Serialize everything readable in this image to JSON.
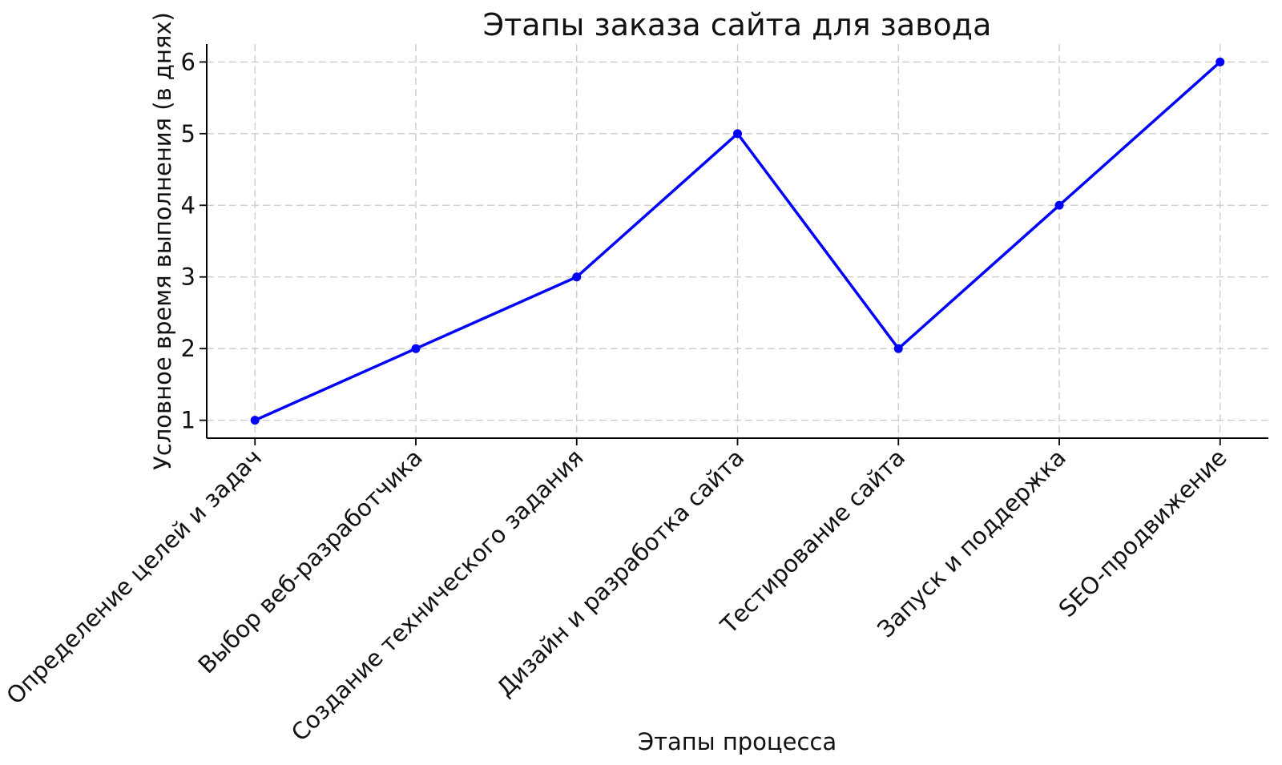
{
  "chart_data": {
    "type": "line",
    "title": "Этапы заказа сайта для завода",
    "xlabel": "Этапы процесса",
    "ylabel": "Условное время выполнения (в днях)",
    "categories": [
      "Определение целей и задач",
      "Выбор веб-разработчика",
      "Создание технического задания",
      "Дизайн и разработка сайта",
      "Тестирование сайта",
      "Запуск и поддержка",
      "SEO-продвижение"
    ],
    "values": [
      1,
      2,
      3,
      5,
      2,
      4,
      6
    ],
    "yticks": [
      1,
      2,
      3,
      4,
      5,
      6
    ],
    "ylim": [
      0.75,
      6.25
    ],
    "grid": "dashed",
    "legend": "none",
    "line_color": "#0000ff",
    "marker": "circle",
    "grid_color": "#c9c9c9"
  }
}
